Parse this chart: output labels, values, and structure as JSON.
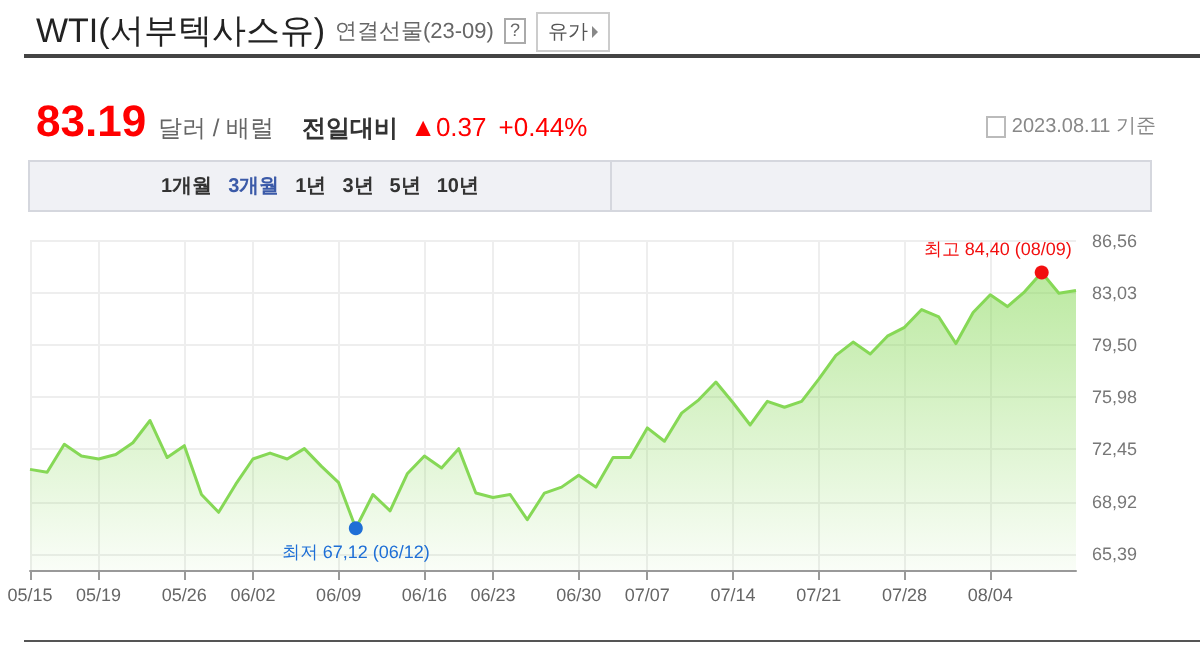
{
  "chart_data": {
    "type": "area",
    "title": "WTI(서부텍사스유)",
    "subtitle": "연결선물(23-09)",
    "categories": [
      "05/15",
      null,
      null,
      null,
      "05/19",
      null,
      null,
      null,
      null,
      "05/26",
      null,
      null,
      null,
      "06/02",
      null,
      null,
      null,
      null,
      "06/09",
      null,
      null,
      null,
      null,
      "06/16",
      null,
      null,
      null,
      "06/23",
      null,
      null,
      null,
      null,
      "06/30",
      null,
      null,
      null,
      "07/07",
      null,
      null,
      null,
      null,
      "07/14",
      null,
      null,
      null,
      null,
      "07/21",
      null,
      null,
      null,
      null,
      "07/28",
      null,
      null,
      null,
      null,
      "08/04",
      null,
      null,
      null,
      null,
      null
    ],
    "series": [
      {
        "color": "#86d856",
        "values": [
          71.1,
          70.9,
          72.8,
          72.0,
          71.8,
          72.1,
          72.9,
          74.4,
          71.9,
          72.7,
          69.4,
          68.2,
          70.1,
          71.8,
          72.2,
          71.8,
          72.5,
          71.3,
          70.2,
          67.12,
          69.4,
          68.3,
          70.8,
          72.0,
          71.2,
          72.5,
          69.5,
          69.2,
          69.4,
          67.7,
          69.5,
          69.9,
          70.7,
          69.9,
          71.9,
          71.9,
          73.9,
          73.0,
          74.9,
          75.8,
          77.0,
          75.6,
          74.1,
          75.7,
          75.3,
          75.7,
          77.2,
          78.8,
          79.7,
          78.9,
          80.1,
          80.7,
          81.9,
          81.4,
          79.6,
          81.7,
          82.9,
          82.1,
          83.1,
          84.4,
          83.0,
          83.19
        ]
      }
    ],
    "ylim": [
      64.3,
      86.6
    ],
    "yticks": [
      {
        "value": 65.39,
        "label": "65,39"
      },
      {
        "value": 68.92,
        "label": "68,92"
      },
      {
        "value": 72.45,
        "label": "72,45"
      },
      {
        "value": 75.98,
        "label": "75,98"
      },
      {
        "value": 79.5,
        "label": "79,50"
      },
      {
        "value": 83.03,
        "label": "83,03"
      },
      {
        "value": 86.56,
        "label": "86,56"
      }
    ],
    "grid": true,
    "marker": "none",
    "annotations": [
      "83.19",
      "달러 / 배럴",
      "전일대비",
      "▲0.37",
      "+0.44%",
      "2023.08.11 기준",
      "유가",
      "1개월",
      "3개월",
      "1년",
      "3년",
      "5년",
      "10년",
      "최고 84,40 (08/09)",
      "최저 67,12 (06/12)",
      "?"
    ]
  }
}
